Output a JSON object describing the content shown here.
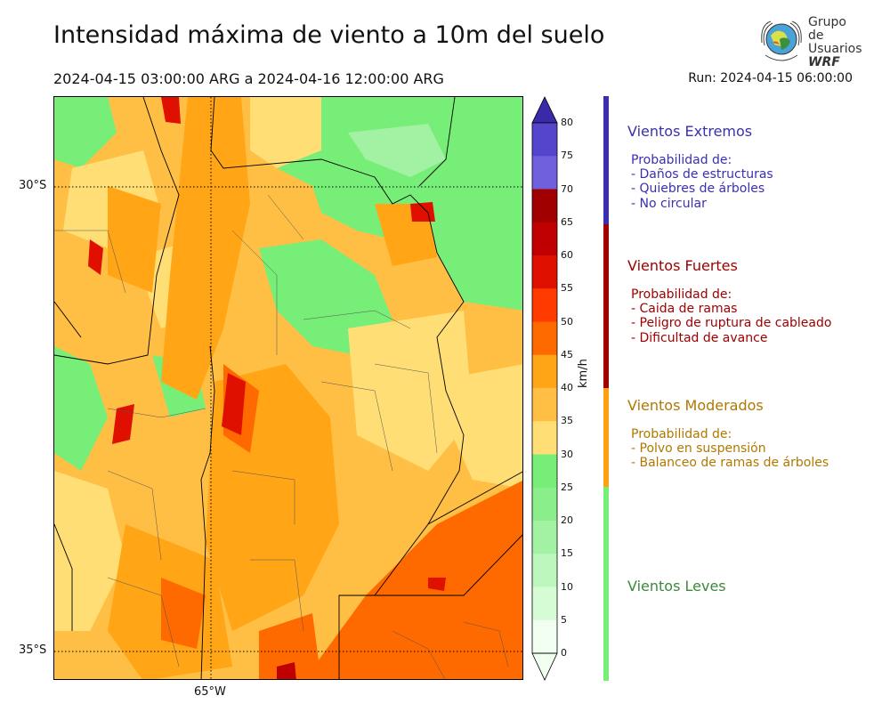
{
  "header": {
    "title": "Intensidad máxima de viento a 10m del suelo",
    "date_range": "2024-04-15 03:00:00 ARG  a  2024-04-16 12:00:00 ARG",
    "run": "Run: 2024-04-15 06:00:00"
  },
  "logo": {
    "line1": "Grupo de",
    "line2": "Usuarios",
    "line3": "WRF"
  },
  "map": {
    "lat_labels": [
      "30°S",
      "35°S"
    ],
    "lon_labels": [
      "65°W"
    ]
  },
  "colorbar": {
    "unit": "km/h",
    "ticks": [
      "80",
      "75",
      "70",
      "65",
      "60",
      "55",
      "50",
      "45",
      "40",
      "35",
      "30",
      "25",
      "20",
      "15",
      "10",
      "5",
      "0"
    ],
    "colors": {
      "0": "#f0fff0",
      "5": "#d6fcd6",
      "10": "#bdf7bd",
      "15": "#a3f2a3",
      "20": "#8aee8a",
      "25": "#77ee77",
      "30": "#ffdf75",
      "35": "#ffbf45",
      "40": "#ffa516",
      "45": "#ff6a00",
      "50": "#ff3b00",
      "55": "#e01000",
      "60": "#c00000",
      "65": "#a00000",
      "70": "#7060dd",
      "75": "#5545cc",
      "80": "#3d2eb5"
    }
  },
  "categories": [
    {
      "title": "Vientos Extremos",
      "color": "#3b2fb0",
      "lines": [
        "Probabilidad de:",
        "- Daños de estructuras",
        "- Quiebres de árboles",
        "- No circular"
      ]
    },
    {
      "title": "Vientos Fuertes",
      "color": "#a00000",
      "lines": [
        "Probabilidad de:",
        "- Caida de ramas",
        "- Peligro de ruptura de cableado",
        "- Dificultad de avance"
      ]
    },
    {
      "title": "Vientos Moderados",
      "color": "#b07800",
      "lines": [
        "Probabilidad de:",
        "- Polvo en suspensión",
        "- Balanceo de ramas de árboles"
      ]
    },
    {
      "title": "Vientos Leves",
      "color": "#3a8a3a",
      "lines": []
    }
  ],
  "category_bar_colors": [
    "#3b2fb0",
    "#a00000",
    "#ffa010",
    "#77ee77"
  ]
}
